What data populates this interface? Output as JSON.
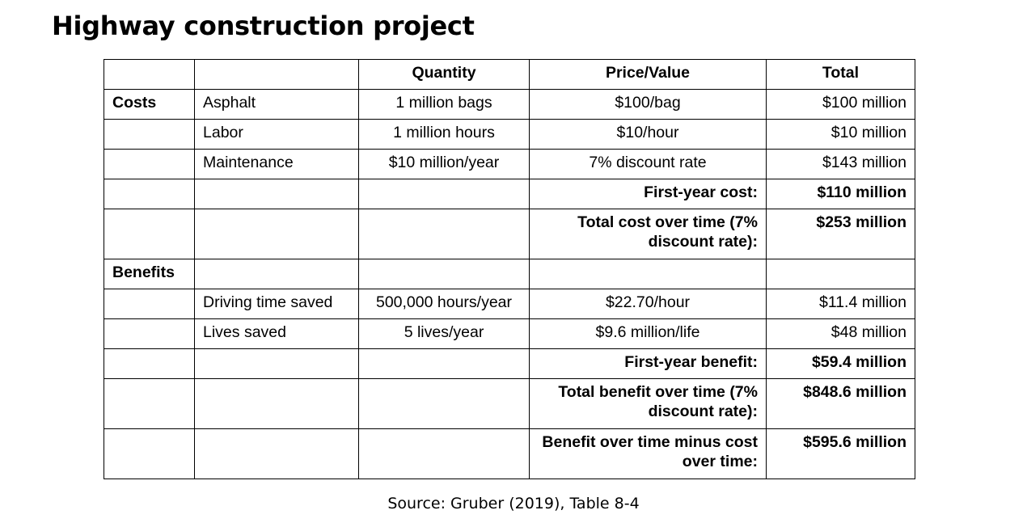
{
  "title": "Highway construction project",
  "table": {
    "headers": [
      "",
      "",
      "Quantity",
      "Price/Value",
      "Total"
    ],
    "cost_section": {
      "label": "Costs",
      "rows": [
        {
          "item": "Asphalt",
          "quantity": "1 million bags",
          "price": "$100/bag",
          "total": "$100 million"
        },
        {
          "item": "Labor",
          "quantity": "1 million hours",
          "price": "$10/hour",
          "total": "$10 million"
        },
        {
          "item": "Maintenance",
          "quantity": "$10 million/year",
          "price": "7% discount rate",
          "total": "$143 million"
        }
      ],
      "summaries": [
        {
          "label": "First-year cost:",
          "value": "$110 million"
        },
        {
          "label": "Total cost over time (7% discount rate):",
          "value": "$253 million"
        }
      ]
    },
    "benefit_section": {
      "label": "Benefits",
      "rows": [
        {
          "item": "Driving time saved",
          "quantity": "500,000 hours/year",
          "price": "$22.70/hour",
          "total": "$11.4 million"
        },
        {
          "item": "Lives saved",
          "quantity": "5 lives/year",
          "price": "$9.6 million/life",
          "total": "$48 million"
        }
      ],
      "summaries": [
        {
          "label": "First-year benefit:",
          "value": "$59.4 million"
        },
        {
          "label": "Total benefit over time (7% discount rate):",
          "value": "$848.6 million"
        },
        {
          "label": "Benefit over time minus cost over time:",
          "value": "$595.6 million"
        }
      ]
    }
  },
  "source": "Source: Gruber (2019), Table 8-4"
}
